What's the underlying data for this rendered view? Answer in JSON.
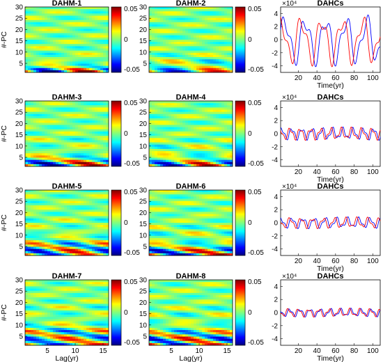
{
  "heatmap_colorbar": {
    "ticks": [
      "0.05",
      "0",
      "-0.05"
    ]
  },
  "chart_data": [
    {
      "type": "heatmap",
      "title": "DAHM-1",
      "xlabel": "",
      "ylabel": "#-PC",
      "x_ticks": [],
      "y_ticks": [
        "30",
        "25",
        "20",
        "15",
        "10",
        "5"
      ],
      "xlim": [
        1,
        16
      ],
      "ylim": [
        1,
        30
      ],
      "colorbar_range": [
        -0.05,
        0.05
      ]
    },
    {
      "type": "heatmap",
      "title": "DAHM-2",
      "xlabel": "",
      "ylabel": "",
      "x_ticks": [],
      "y_ticks": [
        "30",
        "25",
        "20",
        "15",
        "10",
        "5"
      ],
      "xlim": [
        1,
        16
      ],
      "ylim": [
        1,
        30
      ],
      "colorbar_range": [
        -0.05,
        0.05
      ]
    },
    {
      "type": "line",
      "title": "DAHCs",
      "xlabel": "Time(yr)",
      "ylabel": "",
      "exponent_label": "×10⁴",
      "x_ticks": [
        "20",
        "40",
        "60",
        "80",
        "100"
      ],
      "y_ticks": [
        "4",
        "2",
        "0",
        "-2",
        "-4"
      ],
      "xlim": [
        1,
        108
      ],
      "ylim": [
        -5,
        5
      ],
      "amplitude": 3.6,
      "period": 22,
      "phase": 0,
      "phase2": 1.2,
      "series": [
        {
          "color": "#0000ff"
        },
        {
          "color": "#ff0000"
        }
      ]
    },
    {
      "type": "heatmap",
      "title": "DAHM-3",
      "xlabel": "",
      "ylabel": "#-PC",
      "x_ticks": [],
      "y_ticks": [
        "30",
        "25",
        "20",
        "15",
        "10",
        "5"
      ],
      "xlim": [
        1,
        16
      ],
      "ylim": [
        1,
        30
      ],
      "colorbar_range": [
        -0.05,
        0.05
      ]
    },
    {
      "type": "heatmap",
      "title": "DAHM-4",
      "xlabel": "",
      "ylabel": "",
      "x_ticks": [],
      "y_ticks": [
        "30",
        "25",
        "20",
        "15",
        "10",
        "5"
      ],
      "xlim": [
        1,
        16
      ],
      "ylim": [
        1,
        30
      ],
      "colorbar_range": [
        -0.05,
        0.05
      ]
    },
    {
      "type": "line",
      "title": "DAHCs",
      "xlabel": "Time(yr)",
      "ylabel": "",
      "exponent_label": "×10⁴",
      "x_ticks": [
        "20",
        "40",
        "60",
        "80",
        "100"
      ],
      "y_ticks": [
        "4",
        "2",
        "0",
        "-2",
        "-4"
      ],
      "xlim": [
        1,
        108
      ],
      "ylim": [
        -5,
        5
      ],
      "amplitude": 0.9,
      "period": 11,
      "phase": 0.4,
      "phase2": 1.5,
      "series": [
        {
          "color": "#0000ff"
        },
        {
          "color": "#ff0000"
        }
      ]
    },
    {
      "type": "heatmap",
      "title": "DAHM-5",
      "xlabel": "",
      "ylabel": "#-PC",
      "x_ticks": [],
      "y_ticks": [
        "30",
        "25",
        "20",
        "15",
        "10",
        "5"
      ],
      "xlim": [
        1,
        16
      ],
      "ylim": [
        1,
        30
      ],
      "colorbar_range": [
        -0.05,
        0.05
      ]
    },
    {
      "type": "heatmap",
      "title": "DAHM-6",
      "xlabel": "",
      "ylabel": "",
      "x_ticks": [],
      "y_ticks": [
        "30",
        "25",
        "20",
        "15",
        "10",
        "5"
      ],
      "xlim": [
        1,
        16
      ],
      "ylim": [
        1,
        30
      ],
      "colorbar_range": [
        -0.05,
        0.05
      ]
    },
    {
      "type": "line",
      "title": "DAHCs",
      "xlabel": "Time(yr)",
      "ylabel": "",
      "exponent_label": "×10⁴",
      "x_ticks": [
        "20",
        "40",
        "60",
        "80",
        "100"
      ],
      "y_ticks": [
        "4",
        "2",
        "0",
        "-2",
        "-4"
      ],
      "xlim": [
        1,
        108
      ],
      "ylim": [
        -5,
        5
      ],
      "amplitude": 0.8,
      "period": 12,
      "phase": 0.9,
      "phase2": 2.1,
      "series": [
        {
          "color": "#0000ff"
        },
        {
          "color": "#ff0000"
        }
      ]
    },
    {
      "type": "heatmap",
      "title": "DAHM-7",
      "xlabel": "Lag(yr)",
      "ylabel": "#-PC",
      "x_ticks": [
        "5",
        "10",
        "15"
      ],
      "y_ticks": [
        "30",
        "25",
        "20",
        "15",
        "10",
        "5"
      ],
      "xlim": [
        1,
        16
      ],
      "ylim": [
        1,
        30
      ],
      "colorbar_range": [
        -0.05,
        0.05
      ]
    },
    {
      "type": "heatmap",
      "title": "DAHM-8",
      "xlabel": "Lag(yr)",
      "ylabel": "",
      "x_ticks": [
        "5",
        "10",
        "15"
      ],
      "y_ticks": [
        "30",
        "25",
        "20",
        "15",
        "10",
        "5"
      ],
      "xlim": [
        1,
        16
      ],
      "ylim": [
        1,
        30
      ],
      "colorbar_range": [
        -0.05,
        0.05
      ]
    },
    {
      "type": "line",
      "title": "DAHCs",
      "xlabel": "Time(yr)",
      "ylabel": "",
      "exponent_label": "×10⁴",
      "x_ticks": [
        "20",
        "40",
        "60",
        "80",
        "100"
      ],
      "y_ticks": [
        "4",
        "2",
        "0",
        "-2",
        "-4"
      ],
      "xlim": [
        1,
        108
      ],
      "ylim": [
        -5,
        5
      ],
      "amplitude": 0.6,
      "period": 11,
      "phase": 1.7,
      "phase2": 2.6,
      "series": [
        {
          "color": "#0000ff"
        },
        {
          "color": "#ff0000"
        }
      ]
    }
  ]
}
